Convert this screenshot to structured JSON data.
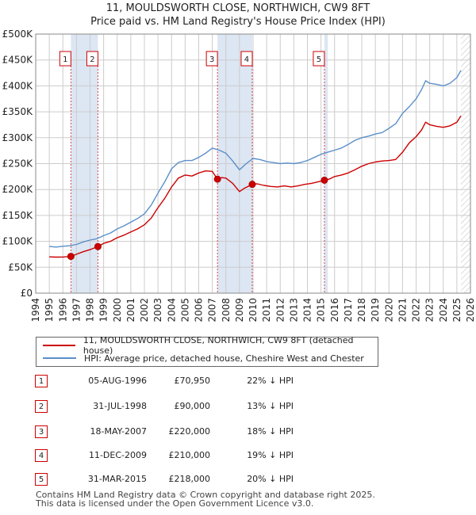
{
  "title_line1": "11, MOULDSWORTH CLOSE, NORTHWICH, CW9 8FT",
  "title_line2": "Price paid vs. HM Land Registry's House Price Index (HPI)",
  "colors": {
    "property": "#cc0000",
    "hpi": "#5b8fc9",
    "shade": "#dde6f3",
    "grid": "#cccccc",
    "marker_border": "#cc0000"
  },
  "chart_data": {
    "type": "line",
    "title": "11, MOULDSWORTH CLOSE, NORTHWICH, CW9 8FT — Price paid vs. HM Land Registry's House Price Index (HPI)",
    "xlim": [
      1994,
      2026
    ],
    "ylim": [
      0,
      500000
    ],
    "y_ticks": [
      0,
      50000,
      100000,
      150000,
      200000,
      250000,
      300000,
      350000,
      400000,
      450000,
      500000
    ],
    "y_tick_labels": [
      "£0",
      "£50K",
      "£100K",
      "£150K",
      "£200K",
      "£250K",
      "£300K",
      "£350K",
      "£400K",
      "£450K",
      "£500K"
    ],
    "x_ticks": [
      1994,
      1995,
      1996,
      1997,
      1998,
      1999,
      2000,
      2001,
      2002,
      2003,
      2004,
      2005,
      2006,
      2007,
      2008,
      2009,
      2010,
      2011,
      2012,
      2013,
      2014,
      2015,
      2016,
      2017,
      2018,
      2019,
      2020,
      2021,
      2022,
      2023,
      2024,
      2025,
      2026
    ],
    "data_start": 1995.0,
    "data_end": 2025.3,
    "shaded_ranges": [
      [
        1996.59,
        1998.58
      ],
      [
        2007.38,
        2009.94
      ],
      [
        2015.25,
        2015.5
      ]
    ],
    "future_hatch_from": 2025.3,
    "series": [
      {
        "name": "11, MOULDSWORTH CLOSE, NORTHWICH, CW9 8FT (detached house)",
        "color": "#cc0000",
        "x": [
          1995.0,
          1995.5,
          1996.0,
          1996.59,
          1997.0,
          1997.5,
          1998.0,
          1998.58,
          1999.0,
          1999.5,
          2000.0,
          2000.5,
          2001.0,
          2001.5,
          2002.0,
          2002.5,
          2003.0,
          2003.5,
          2004.0,
          2004.5,
          2005.0,
          2005.5,
          2006.0,
          2006.5,
          2007.0,
          2007.38,
          2007.7,
          2008.0,
          2008.5,
          2009.0,
          2009.4,
          2009.94,
          2010.3,
          2010.8,
          2011.3,
          2011.8,
          2012.3,
          2012.8,
          2013.3,
          2013.8,
          2014.3,
          2014.8,
          2015.25,
          2015.6,
          2016.0,
          2016.5,
          2017.0,
          2017.5,
          2018.0,
          2018.5,
          2019.0,
          2019.5,
          2020.0,
          2020.5,
          2021.0,
          2021.5,
          2022.0,
          2022.4,
          2022.7,
          2023.0,
          2023.5,
          2024.0,
          2024.5,
          2025.0,
          2025.3
        ],
        "y": [
          70000,
          69500,
          69800,
          70950,
          75000,
          80000,
          84000,
          90000,
          96000,
          100000,
          107000,
          112000,
          118000,
          124000,
          132000,
          145000,
          165000,
          183000,
          205000,
          222000,
          228000,
          226000,
          232000,
          236000,
          235000,
          220000,
          223000,
          222000,
          212000,
          196000,
          203000,
          210000,
          211000,
          208000,
          206000,
          205000,
          207000,
          205000,
          207000,
          210000,
          212000,
          215000,
          218000,
          220000,
          225000,
          228000,
          232000,
          238000,
          245000,
          250000,
          253000,
          255000,
          256000,
          258000,
          272000,
          290000,
          302000,
          315000,
          330000,
          325000,
          322000,
          320000,
          323000,
          330000,
          342000
        ]
      },
      {
        "name": "HPI: Average price, detached house, Cheshire West and Chester",
        "color": "#5b8fc9",
        "x": [
          1995.0,
          1995.5,
          1996.0,
          1996.5,
          1997.0,
          1997.5,
          1998.0,
          1998.5,
          1999.0,
          1999.5,
          2000.0,
          2000.5,
          2001.0,
          2001.5,
          2002.0,
          2002.5,
          2003.0,
          2003.5,
          2004.0,
          2004.5,
          2005.0,
          2005.5,
          2006.0,
          2006.5,
          2007.0,
          2007.5,
          2008.0,
          2008.5,
          2009.0,
          2009.5,
          2010.0,
          2010.5,
          2011.0,
          2011.5,
          2012.0,
          2012.5,
          2013.0,
          2013.5,
          2014.0,
          2014.5,
          2015.0,
          2015.5,
          2016.0,
          2016.5,
          2017.0,
          2017.5,
          2018.0,
          2018.5,
          2019.0,
          2019.5,
          2020.0,
          2020.5,
          2021.0,
          2021.5,
          2022.0,
          2022.4,
          2022.7,
          2023.0,
          2023.5,
          2024.0,
          2024.5,
          2025.0,
          2025.3
        ],
        "y": [
          90000,
          89000,
          90500,
          91500,
          94000,
          99000,
          102500,
          105000,
          111000,
          116000,
          124000,
          130000,
          137000,
          144000,
          153000,
          170000,
          193000,
          215000,
          240000,
          252000,
          256000,
          256000,
          262000,
          270000,
          280000,
          276000,
          270000,
          255000,
          238000,
          250000,
          260000,
          258000,
          254000,
          252000,
          250000,
          251000,
          250000,
          252000,
          256000,
          262000,
          268000,
          272000,
          276000,
          280000,
          287000,
          295000,
          300000,
          303000,
          307000,
          310000,
          318000,
          327000,
          347000,
          360000,
          375000,
          393000,
          410000,
          405000,
          403000,
          400000,
          405000,
          416000,
          430000
        ]
      }
    ],
    "markers": [
      {
        "label": "1",
        "x": 1996.59,
        "y": 70950
      },
      {
        "label": "2",
        "x": 1998.58,
        "y": 90000
      },
      {
        "label": "3",
        "x": 2007.38,
        "y": 220000
      },
      {
        "label": "4",
        "x": 2009.94,
        "y": 210000
      },
      {
        "label": "5",
        "x": 2015.25,
        "y": 218000
      }
    ]
  },
  "legend": {
    "property_label": "11, MOULDSWORTH CLOSE, NORTHWICH, CW9 8FT (detached house)",
    "hpi_label": "HPI: Average price, detached house, Cheshire West and Chester"
  },
  "sales": [
    {
      "num": "1",
      "date": "05-AUG-1996",
      "price": "£70,950",
      "hpi": "22% ↓ HPI"
    },
    {
      "num": "2",
      "date": "31-JUL-1998",
      "price": "£90,000",
      "hpi": "13% ↓ HPI"
    },
    {
      "num": "3",
      "date": "18-MAY-2007",
      "price": "£220,000",
      "hpi": "18% ↓ HPI"
    },
    {
      "num": "4",
      "date": "11-DEC-2009",
      "price": "£210,000",
      "hpi": "19% ↓ HPI"
    },
    {
      "num": "5",
      "date": "31-MAR-2015",
      "price": "£218,000",
      "hpi": "20% ↓ HPI"
    }
  ],
  "footer": {
    "line1": "Contains HM Land Registry data © Crown copyright and database right 2025.",
    "line2": "This data is licensed under the Open Government Licence v3.0."
  }
}
